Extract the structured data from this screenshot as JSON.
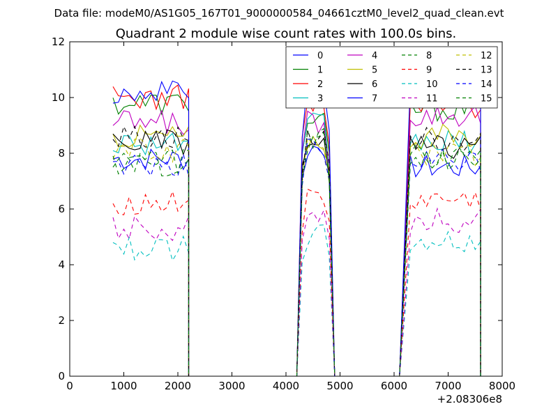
{
  "suptitle": "Data file: modeM0/AS1G05_167T01_9000000584_04661cztM0_level2_quad_clean.evt",
  "chart_data": {
    "type": "line",
    "title": "Quadrant 2 module wise count rates with 100.0s bins.",
    "xlabel": "",
    "ylabel": "",
    "x_offset_label": "+2.08306e8",
    "xlim": [
      0,
      8000
    ],
    "ylim": [
      0,
      12
    ],
    "xticks": [
      0,
      1000,
      2000,
      3000,
      4000,
      5000,
      6000,
      7000,
      8000
    ],
    "yticks": [
      0,
      2,
      4,
      6,
      8,
      10,
      12
    ],
    "grid": false,
    "legend_position": "top-right",
    "legend_columns": 4,
    "bins": {
      "step": 100,
      "segments": [
        {
          "start": 800,
          "count": 15
        },
        {
          "start": 4300,
          "count": 6
        },
        {
          "start": 6300,
          "count": 14
        }
      ],
      "gaps": [
        [
          2200,
          4200
        ],
        [
          4900,
          6100
        ],
        [
          7600,
          7600
        ]
      ]
    },
    "series": [
      {
        "name": "0",
        "color": "#0000ff",
        "dash": "solid",
        "levels": [
          7.8,
          8.2,
          7.5
        ]
      },
      {
        "name": "1",
        "color": "#008000",
        "dash": "solid",
        "levels": [
          9.8,
          9.2,
          9.6
        ]
      },
      {
        "name": "2",
        "color": "#ff0000",
        "dash": "solid",
        "levels": [
          10.0,
          9.8,
          9.7
        ]
      },
      {
        "name": "3",
        "color": "#00bfbf",
        "dash": "solid",
        "levels": [
          8.4,
          9.0,
          8.4
        ]
      },
      {
        "name": "4",
        "color": "#bf00bf",
        "dash": "solid",
        "levels": [
          9.1,
          9.1,
          9.4
        ]
      },
      {
        "name": "5",
        "color": "#bfbf00",
        "dash": "solid",
        "levels": [
          8.6,
          8.5,
          8.6
        ]
      },
      {
        "name": "6",
        "color": "#000000",
        "dash": "solid",
        "levels": [
          8.4,
          8.4,
          8.2
        ]
      },
      {
        "name": "7",
        "color": "#0000ff",
        "dash": "solid",
        "levels": [
          10.2,
          10.6,
          10.3
        ]
      },
      {
        "name": "8",
        "color": "#008000",
        "dash": "dashed",
        "levels": [
          7.7,
          8.6,
          7.9
        ]
      },
      {
        "name": "9",
        "color": "#ff0000",
        "dash": "dashed",
        "levels": [
          6.2,
          6.3,
          6.3
        ]
      },
      {
        "name": "10",
        "color": "#00bfbf",
        "dash": "dashed",
        "levels": [
          4.6,
          5.0,
          4.8
        ]
      },
      {
        "name": "11",
        "color": "#bf00bf",
        "dash": "dashed",
        "levels": [
          5.3,
          5.9,
          5.6
        ]
      },
      {
        "name": "12",
        "color": "#bfbf00",
        "dash": "dashed",
        "levels": [
          8.1,
          8.5,
          8.0
        ]
      },
      {
        "name": "13",
        "color": "#000000",
        "dash": "dashed",
        "levels": [
          8.6,
          8.6,
          8.5
        ]
      },
      {
        "name": "14",
        "color": "#0000ff",
        "dash": "dashed",
        "levels": [
          7.6,
          8.1,
          7.7
        ]
      },
      {
        "name": "15",
        "color": "#008000",
        "dash": "dashed",
        "levels": [
          7.6,
          8.4,
          7.8
        ]
      }
    ]
  }
}
